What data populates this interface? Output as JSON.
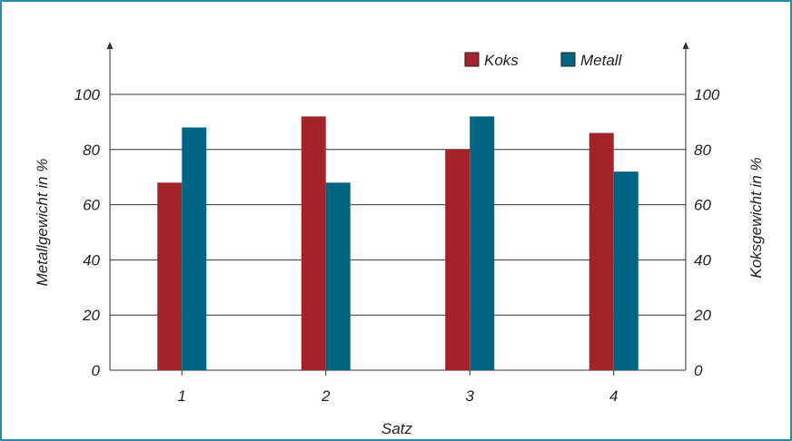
{
  "chart_data": {
    "type": "bar",
    "categories": [
      "1",
      "2",
      "3",
      "4"
    ],
    "series": [
      {
        "name": "Koks",
        "values": [
          68,
          92,
          80,
          86
        ],
        "color": "#a3232a"
      },
      {
        "name": "Metall",
        "values": [
          88,
          68,
          92,
          72
        ],
        "color": "#006583"
      }
    ],
    "xlabel": "Satz",
    "ylabel_left": "Metallgewicht in %",
    "ylabel_right": "Koksgewicht in %",
    "ylim": [
      0,
      100
    ],
    "yticks": [
      "0",
      "20",
      "40",
      "60",
      "80",
      "100"
    ],
    "grid": true,
    "legend_position": "top-right"
  },
  "colors": {
    "frame": "#2a8fa3",
    "grid": "#333333"
  }
}
